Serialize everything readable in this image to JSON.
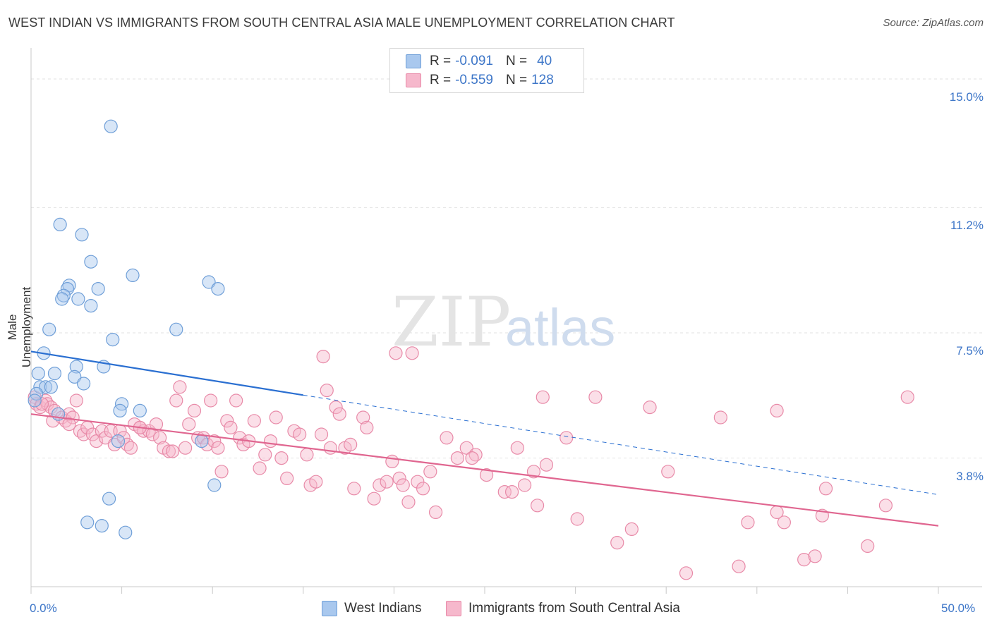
{
  "title": "WEST INDIAN VS IMMIGRANTS FROM SOUTH CENTRAL ASIA MALE UNEMPLOYMENT CORRELATION CHART",
  "source": "Source: ZipAtlas.com",
  "watermark": {
    "zip": "ZIP",
    "atlas": "atlas"
  },
  "colors": {
    "blue_fill": "#a9c8ee",
    "blue_stroke": "#6f9fd8",
    "blue_line": "#2a6fd1",
    "pink_fill": "#f6b8cc",
    "pink_stroke": "#e88aa8",
    "pink_line": "#e06690",
    "axis_text": "#3d76c8",
    "grid": "#e2e2e2"
  },
  "legend": {
    "rows": [
      {
        "r_label": "R =",
        "r_value": "-0.091",
        "n_label": "N =",
        "n_value": "40",
        "color": "#a9c8ee"
      },
      {
        "r_label": "R =",
        "r_value": "-0.559",
        "n_label": "N =",
        "n_value": "128",
        "color": "#f6b8cc"
      }
    ]
  },
  "chart_data": {
    "type": "scatter",
    "title": "WEST INDIAN VS IMMIGRANTS FROM SOUTH CENTRAL ASIA MALE UNEMPLOYMENT CORRELATION CHART",
    "xlabel": "",
    "ylabel": "Male Unemployment",
    "xlim": [
      0,
      50
    ],
    "ylim": [
      0,
      15.75
    ],
    "x_tick_labels": [
      "0.0%",
      "50.0%"
    ],
    "y_ticks": [
      3.8,
      7.5,
      11.2,
      15.0
    ],
    "y_tick_labels": [
      "3.8%",
      "7.5%",
      "11.2%",
      "15.0%"
    ],
    "grid": true,
    "legend_position": "top-center",
    "series": [
      {
        "name": "West Indians",
        "color": "#a9c8ee",
        "trend": {
          "x0": 0,
          "y0": 6.95,
          "x1": 15,
          "y1": 5.66,
          "dashed_to_x": 50,
          "dashed_to_y": 2.72
        },
        "points": [
          [
            4.4,
            13.6
          ],
          [
            1.6,
            10.7
          ],
          [
            2.8,
            10.4
          ],
          [
            3.3,
            9.6
          ],
          [
            5.6,
            9.2
          ],
          [
            9.8,
            9.0
          ],
          [
            10.3,
            8.8
          ],
          [
            2.1,
            8.9
          ],
          [
            3.7,
            8.8
          ],
          [
            2.0,
            8.8
          ],
          [
            1.8,
            8.6
          ],
          [
            1.7,
            8.5
          ],
          [
            2.6,
            8.5
          ],
          [
            3.3,
            8.3
          ],
          [
            1.0,
            7.6
          ],
          [
            4.5,
            7.3
          ],
          [
            8.0,
            7.6
          ],
          [
            0.7,
            6.9
          ],
          [
            4.0,
            6.5
          ],
          [
            2.5,
            6.5
          ],
          [
            0.4,
            6.3
          ],
          [
            1.3,
            6.3
          ],
          [
            2.4,
            6.2
          ],
          [
            2.9,
            6.0
          ],
          [
            0.5,
            5.9
          ],
          [
            0.8,
            5.9
          ],
          [
            1.1,
            5.9
          ],
          [
            0.3,
            5.7
          ],
          [
            5.0,
            5.4
          ],
          [
            4.9,
            5.2
          ],
          [
            6.0,
            5.2
          ],
          [
            1.5,
            5.1
          ],
          [
            4.8,
            4.3
          ],
          [
            9.4,
            4.3
          ],
          [
            10.1,
            3.0
          ],
          [
            4.3,
            2.6
          ],
          [
            3.1,
            1.9
          ],
          [
            3.9,
            1.8
          ],
          [
            5.2,
            1.6
          ],
          [
            0.2,
            5.5
          ]
        ]
      },
      {
        "name": "Immigrants from South Central Asia",
        "color": "#f6b8cc",
        "trend": {
          "x0": 0,
          "y0": 5.1,
          "x1": 50,
          "y1": 1.8
        },
        "points": [
          [
            0.2,
            5.6
          ],
          [
            0.3,
            5.4
          ],
          [
            0.5,
            5.3
          ],
          [
            0.8,
            5.5
          ],
          [
            0.9,
            5.4
          ],
          [
            1.1,
            5.3
          ],
          [
            1.3,
            5.2
          ],
          [
            1.2,
            4.9
          ],
          [
            1.7,
            5.0
          ],
          [
            1.9,
            4.9
          ],
          [
            2.1,
            5.1
          ],
          [
            2.3,
            5.0
          ],
          [
            2.5,
            5.5
          ],
          [
            2.7,
            4.6
          ],
          [
            2.9,
            4.5
          ],
          [
            3.1,
            4.7
          ],
          [
            3.4,
            4.5
          ],
          [
            3.6,
            4.3
          ],
          [
            3.9,
            4.6
          ],
          [
            4.1,
            4.4
          ],
          [
            4.4,
            4.6
          ],
          [
            4.6,
            4.2
          ],
          [
            4.9,
            4.6
          ],
          [
            5.1,
            4.4
          ],
          [
            5.3,
            4.2
          ],
          [
            5.5,
            4.1
          ],
          [
            5.7,
            4.8
          ],
          [
            6.0,
            4.7
          ],
          [
            6.2,
            4.6
          ],
          [
            6.5,
            4.6
          ],
          [
            6.7,
            4.5
          ],
          [
            6.9,
            4.8
          ],
          [
            7.1,
            4.4
          ],
          [
            7.3,
            4.1
          ],
          [
            7.6,
            4.0
          ],
          [
            7.8,
            4.0
          ],
          [
            8.0,
            5.5
          ],
          [
            8.2,
            5.9
          ],
          [
            8.5,
            4.1
          ],
          [
            8.7,
            4.8
          ],
          [
            9.0,
            5.2
          ],
          [
            9.2,
            4.4
          ],
          [
            9.5,
            4.4
          ],
          [
            9.7,
            4.2
          ],
          [
            9.9,
            5.5
          ],
          [
            10.1,
            4.3
          ],
          [
            10.3,
            4.1
          ],
          [
            10.5,
            3.4
          ],
          [
            10.8,
            4.9
          ],
          [
            11.0,
            4.7
          ],
          [
            11.3,
            5.5
          ],
          [
            11.5,
            4.4
          ],
          [
            11.7,
            4.2
          ],
          [
            12.0,
            4.3
          ],
          [
            12.3,
            4.9
          ],
          [
            12.6,
            3.5
          ],
          [
            12.9,
            3.9
          ],
          [
            13.2,
            4.3
          ],
          [
            13.5,
            5.0
          ],
          [
            13.8,
            3.8
          ],
          [
            14.1,
            3.2
          ],
          [
            14.5,
            4.6
          ],
          [
            14.8,
            4.5
          ],
          [
            15.2,
            3.9
          ],
          [
            15.4,
            3.0
          ],
          [
            15.7,
            3.1
          ],
          [
            16.0,
            4.5
          ],
          [
            16.3,
            5.8
          ],
          [
            16.5,
            4.1
          ],
          [
            16.8,
            5.3
          ],
          [
            17.0,
            5.1
          ],
          [
            17.3,
            4.1
          ],
          [
            17.6,
            4.2
          ],
          [
            17.8,
            2.9
          ],
          [
            18.3,
            5.0
          ],
          [
            18.5,
            4.7
          ],
          [
            18.9,
            2.6
          ],
          [
            19.2,
            3.0
          ],
          [
            19.6,
            3.1
          ],
          [
            19.9,
            3.7
          ],
          [
            20.3,
            3.2
          ],
          [
            20.5,
            3.0
          ],
          [
            20.8,
            2.5
          ],
          [
            21.3,
            3.1
          ],
          [
            21.6,
            2.9
          ],
          [
            22.0,
            3.4
          ],
          [
            22.3,
            2.2
          ],
          [
            22.9,
            4.4
          ],
          [
            23.5,
            3.8
          ],
          [
            24.0,
            4.1
          ],
          [
            24.5,
            3.9
          ],
          [
            24.3,
            3.8
          ],
          [
            25.1,
            3.3
          ],
          [
            26.1,
            2.8
          ],
          [
            26.5,
            2.8
          ],
          [
            26.8,
            4.1
          ],
          [
            27.2,
            3.0
          ],
          [
            27.7,
            3.4
          ],
          [
            27.9,
            2.4
          ],
          [
            28.4,
            3.6
          ],
          [
            29.5,
            4.4
          ],
          [
            30.1,
            2.0
          ],
          [
            31.1,
            5.6
          ],
          [
            32.3,
            1.3
          ],
          [
            28.2,
            5.6
          ],
          [
            33.1,
            1.7
          ],
          [
            34.1,
            5.3
          ],
          [
            35.1,
            3.4
          ],
          [
            36.1,
            0.4
          ],
          [
            38.0,
            5.0
          ],
          [
            39.0,
            0.6
          ],
          [
            39.5,
            1.9
          ],
          [
            41.1,
            5.2
          ],
          [
            41.1,
            2.2
          ],
          [
            41.5,
            1.9
          ],
          [
            42.6,
            0.8
          ],
          [
            43.6,
            2.1
          ],
          [
            43.8,
            2.9
          ],
          [
            43.2,
            0.9
          ],
          [
            46.1,
            1.2
          ],
          [
            47.1,
            2.4
          ],
          [
            48.3,
            5.6
          ],
          [
            21.0,
            6.9
          ],
          [
            16.1,
            6.8
          ],
          [
            20.1,
            6.9
          ],
          [
            6.0,
            4.7
          ],
          [
            2.1,
            4.8
          ],
          [
            0.6,
            5.4
          ]
        ]
      }
    ]
  },
  "bottom_legend": [
    {
      "label": "West Indians",
      "color": "#a9c8ee"
    },
    {
      "label": "Immigrants from South Central Asia",
      "color": "#f6b8cc"
    }
  ]
}
